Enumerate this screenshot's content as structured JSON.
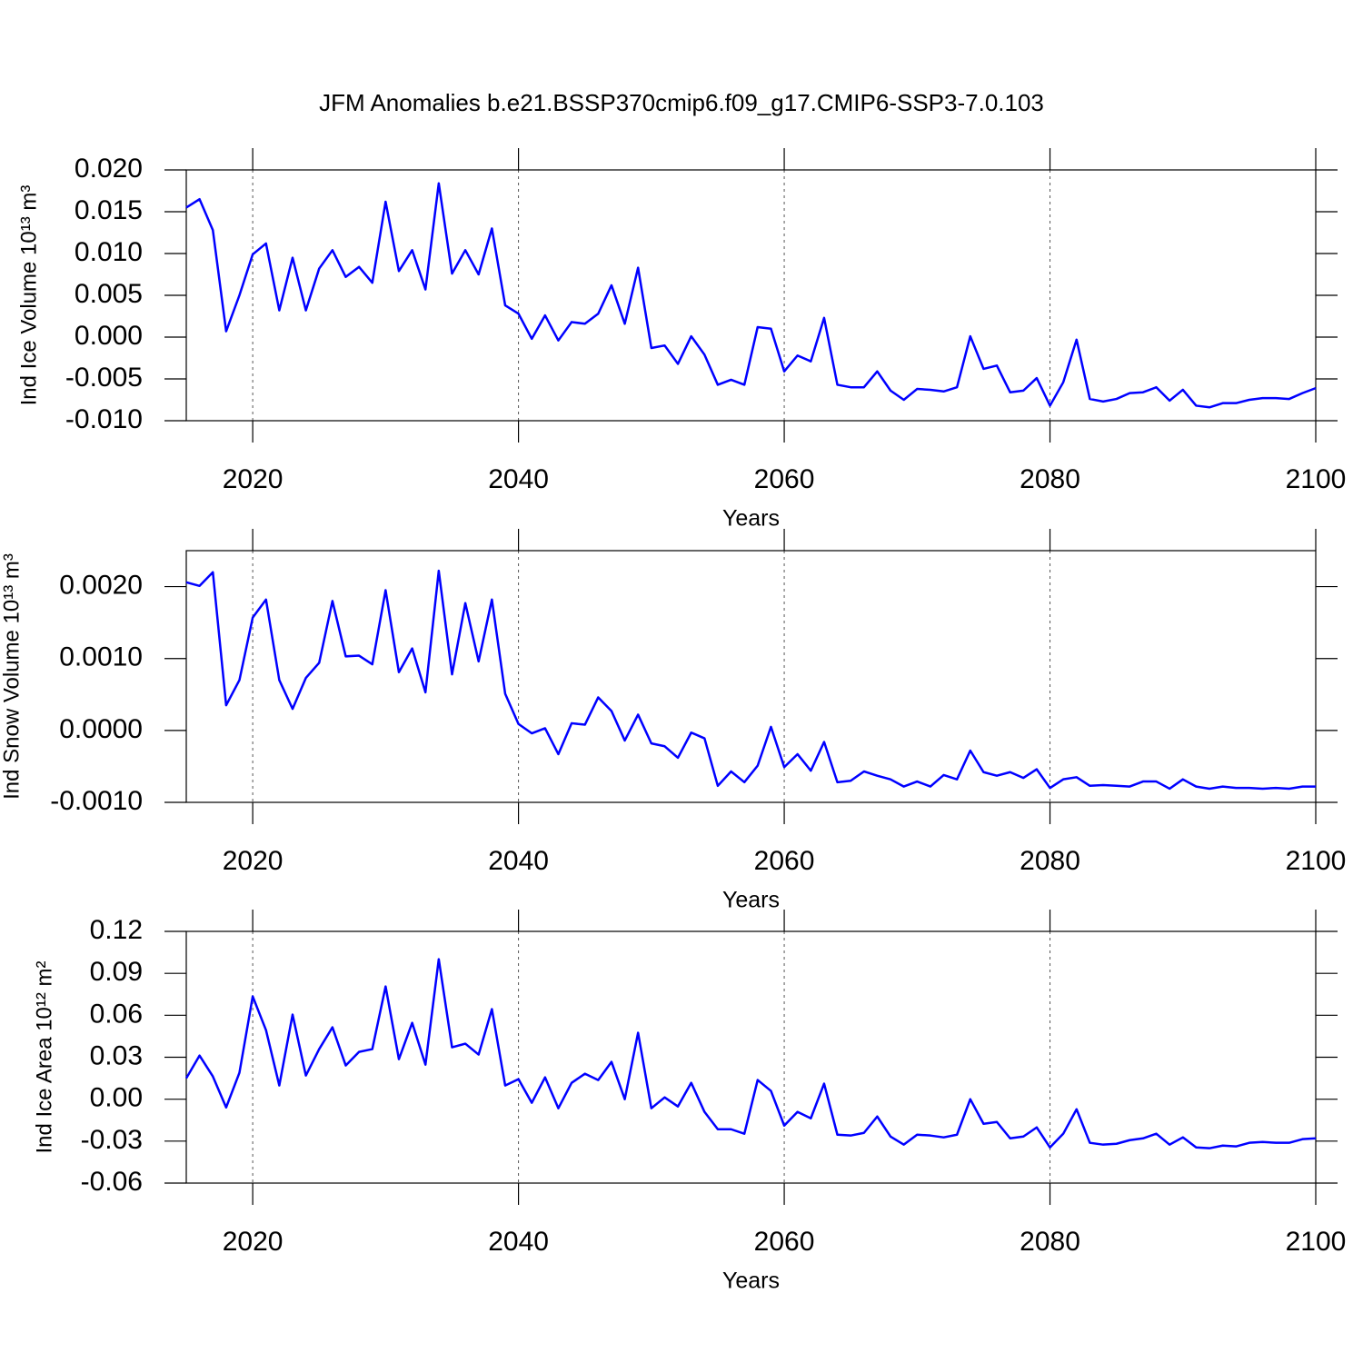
{
  "chart_data": [
    {
      "type": "line",
      "title": "JFM Anomalies b.e21.BSSP370cmip6.f09_g17.CMIP6-SSP3-7.0.103",
      "ylabel": "Ind Ice Volume 10¹³ m³",
      "xlabel": "Years",
      "color": "#0000ff",
      "grid": true,
      "xlim": [
        2015,
        2100
      ],
      "xticks": [
        2020,
        2040,
        2060,
        2080,
        2100
      ],
      "ylim": [
        -0.01,
        0.02
      ],
      "yticks": [
        {
          "value": -0.01,
          "label": "-0.010"
        },
        {
          "value": -0.005,
          "label": "-0.005"
        },
        {
          "value": 0,
          "label": "0.000"
        },
        {
          "value": 0.005,
          "label": "0.005"
        },
        {
          "value": 0.01,
          "label": "0.010"
        },
        {
          "value": 0.015,
          "label": "0.015"
        },
        {
          "value": 0.02,
          "label": "0.020"
        }
      ],
      "x": [
        2015,
        2016,
        2017,
        2018,
        2019,
        2020,
        2021,
        2022,
        2023,
        2024,
        2025,
        2026,
        2027,
        2028,
        2029,
        2030,
        2031,
        2032,
        2033,
        2034,
        2035,
        2036,
        2037,
        2038,
        2039,
        2040,
        2041,
        2042,
        2043,
        2044,
        2045,
        2046,
        2047,
        2048,
        2049,
        2050,
        2051,
        2052,
        2053,
        2054,
        2055,
        2056,
        2057,
        2058,
        2059,
        2060,
        2061,
        2062,
        2063,
        2064,
        2065,
        2066,
        2067,
        2068,
        2069,
        2070,
        2071,
        2072,
        2073,
        2074,
        2075,
        2076,
        2077,
        2078,
        2079,
        2080,
        2081,
        2082,
        2083,
        2084,
        2085,
        2086,
        2087,
        2088,
        2089,
        2090,
        2091,
        2092,
        2093,
        2094,
        2095,
        2096,
        2097,
        2098,
        2099,
        2100
      ],
      "values": [
        0.0155,
        0.0165,
        0.0128,
        0.0007,
        0.005,
        0.0099,
        0.0112,
        0.0032,
        0.0095,
        0.0032,
        0.0082,
        0.0104,
        0.0072,
        0.0084,
        0.0065,
        0.0162,
        0.0079,
        0.0104,
        0.0057,
        0.0184,
        0.0076,
        0.0104,
        0.0075,
        0.013,
        0.0038,
        0.0028,
        -0.0002,
        0.0026,
        -0.0004,
        0.0018,
        0.0016,
        0.0028,
        0.0062,
        0.0016,
        0.0083,
        -0.0013,
        -0.001,
        -0.0032,
        0.0001,
        -0.0021,
        -0.0057,
        -0.0051,
        -0.0057,
        0.0012,
        0.001,
        -0.0041,
        -0.0022,
        -0.0029,
        0.0023,
        -0.0057,
        -0.006,
        -0.006,
        -0.0041,
        -0.0064,
        -0.0075,
        -0.0062,
        -0.0063,
        -0.0065,
        -0.006,
        0.0001,
        -0.0038,
        -0.0034,
        -0.0066,
        -0.0064,
        -0.0049,
        -0.0082,
        -0.0054,
        -0.0003,
        -0.0074,
        -0.0077,
        -0.0074,
        -0.0067,
        -0.0066,
        -0.006,
        -0.0076,
        -0.0063,
        -0.0082,
        -0.0084,
        -0.0079,
        -0.0079,
        -0.0075,
        -0.0073,
        -0.0073,
        -0.0074,
        -0.0067,
        -0.0061
      ]
    },
    {
      "type": "line",
      "ylabel": "Ind Snow Volume 10¹³ m³",
      "xlabel": "Years",
      "color": "#0000ff",
      "grid": true,
      "xlim": [
        2015,
        2100
      ],
      "xticks": [
        2020,
        2040,
        2060,
        2080,
        2100
      ],
      "ylim": [
        -0.001,
        0.0025
      ],
      "yticks": [
        {
          "value": -0.001,
          "label": "-0.0010"
        },
        {
          "value": 0,
          "label": "0.0000"
        },
        {
          "value": 0.001,
          "label": "0.0010"
        },
        {
          "value": 0.002,
          "label": "0.0020"
        }
      ],
      "x": [
        2015,
        2016,
        2017,
        2018,
        2019,
        2020,
        2021,
        2022,
        2023,
        2024,
        2025,
        2026,
        2027,
        2028,
        2029,
        2030,
        2031,
        2032,
        2033,
        2034,
        2035,
        2036,
        2037,
        2038,
        2039,
        2040,
        2041,
        2042,
        2043,
        2044,
        2045,
        2046,
        2047,
        2048,
        2049,
        2050,
        2051,
        2052,
        2053,
        2054,
        2055,
        2056,
        2057,
        2058,
        2059,
        2060,
        2061,
        2062,
        2063,
        2064,
        2065,
        2066,
        2067,
        2068,
        2069,
        2070,
        2071,
        2072,
        2073,
        2074,
        2075,
        2076,
        2077,
        2078,
        2079,
        2080,
        2081,
        2082,
        2083,
        2084,
        2085,
        2086,
        2087,
        2088,
        2089,
        2090,
        2091,
        2092,
        2093,
        2094,
        2095,
        2096,
        2097,
        2098,
        2099,
        2100
      ],
      "values": [
        0.00206,
        0.00201,
        0.0022,
        0.00035,
        0.0007,
        0.00157,
        0.00182,
        0.0007,
        0.0003,
        0.00073,
        0.00094,
        0.0018,
        0.00103,
        0.00104,
        0.00092,
        0.00195,
        0.00081,
        0.00114,
        0.00053,
        0.00222,
        0.00078,
        0.00177,
        0.00096,
        0.00182,
        0.00051,
        9e-05,
        -4e-05,
        3e-05,
        -0.00033,
        0.0001,
        8e-05,
        0.00046,
        0.00027,
        -0.00014,
        0.00022,
        -0.00018,
        -0.00022,
        -0.00038,
        -3e-05,
        -0.00011,
        -0.00077,
        -0.00057,
        -0.00072,
        -0.00049,
        5e-05,
        -0.00051,
        -0.00033,
        -0.00056,
        -0.00016,
        -0.00072,
        -0.0007,
        -0.00057,
        -0.00063,
        -0.00068,
        -0.00078,
        -0.00071,
        -0.00078,
        -0.00062,
        -0.00068,
        -0.00028,
        -0.00058,
        -0.00063,
        -0.00058,
        -0.00066,
        -0.00054,
        -0.0008,
        -0.00068,
        -0.00065,
        -0.00077,
        -0.00076,
        -0.00077,
        -0.00078,
        -0.00071,
        -0.00071,
        -0.00081,
        -0.00068,
        -0.00078,
        -0.00081,
        -0.00078,
        -0.0008,
        -0.0008,
        -0.00081,
        -0.0008,
        -0.00081,
        -0.00078,
        -0.00078
      ]
    },
    {
      "type": "line",
      "ylabel": "Ind Ice Area 10¹² m²",
      "xlabel": "Years",
      "color": "#0000ff",
      "grid": true,
      "xlim": [
        2015,
        2100
      ],
      "xticks": [
        2020,
        2040,
        2060,
        2080,
        2100
      ],
      "ylim": [
        -0.06,
        0.12
      ],
      "yticks": [
        -0.06,
        -0.03,
        {
          "value": 0,
          "label": "0.00"
        },
        0.03,
        0.06,
        0.09,
        0.12
      ],
      "x": [
        2015,
        2016,
        2017,
        2018,
        2019,
        2020,
        2021,
        2022,
        2023,
        2024,
        2025,
        2026,
        2027,
        2028,
        2029,
        2030,
        2031,
        2032,
        2033,
        2034,
        2035,
        2036,
        2037,
        2038,
        2039,
        2040,
        2041,
        2042,
        2043,
        2044,
        2045,
        2046,
        2047,
        2048,
        2049,
        2050,
        2051,
        2052,
        2053,
        2054,
        2055,
        2056,
        2057,
        2058,
        2059,
        2060,
        2061,
        2062,
        2063,
        2064,
        2065,
        2066,
        2067,
        2068,
        2069,
        2070,
        2071,
        2072,
        2073,
        2074,
        2075,
        2076,
        2077,
        2078,
        2079,
        2080,
        2081,
        2082,
        2083,
        2084,
        2085,
        2086,
        2087,
        2088,
        2089,
        2090,
        2091,
        2092,
        2093,
        2094,
        2095,
        2096,
        2097,
        2098,
        2099,
        2100
      ],
      "values": [
        0.015,
        0.0312,
        0.0163,
        -0.0059,
        0.0189,
        0.0735,
        0.0494,
        0.0098,
        0.0605,
        0.0169,
        0.0358,
        0.0514,
        0.0241,
        0.0338,
        0.0358,
        0.0806,
        0.0286,
        0.0546,
        0.0247,
        0.1001,
        0.0371,
        0.0397,
        0.0319,
        0.0644,
        0.0098,
        0.0143,
        -0.0026,
        0.0156,
        -0.0065,
        0.0117,
        0.0182,
        0.0137,
        0.0267,
        0.0,
        0.0475,
        -0.0065,
        0.0013,
        -0.0052,
        0.0117,
        -0.0091,
        -0.0215,
        -0.0215,
        -0.0247,
        0.0137,
        0.0059,
        -0.0189,
        -0.0091,
        -0.0137,
        0.0111,
        -0.0254,
        -0.026,
        -0.0241,
        -0.0124,
        -0.0267,
        -0.0325,
        -0.0254,
        -0.026,
        -0.0273,
        -0.0254,
        0.0,
        -0.0176,
        -0.0163,
        -0.028,
        -0.0267,
        -0.0202,
        -0.0345,
        -0.0247,
        -0.0072,
        -0.0312,
        -0.0325,
        -0.0319,
        -0.0293,
        -0.028,
        -0.0247,
        -0.0325,
        -0.0273,
        -0.0345,
        -0.0351,
        -0.0332,
        -0.0338,
        -0.0312,
        -0.0306,
        -0.0312,
        -0.0312,
        -0.0286,
        -0.028
      ]
    }
  ]
}
